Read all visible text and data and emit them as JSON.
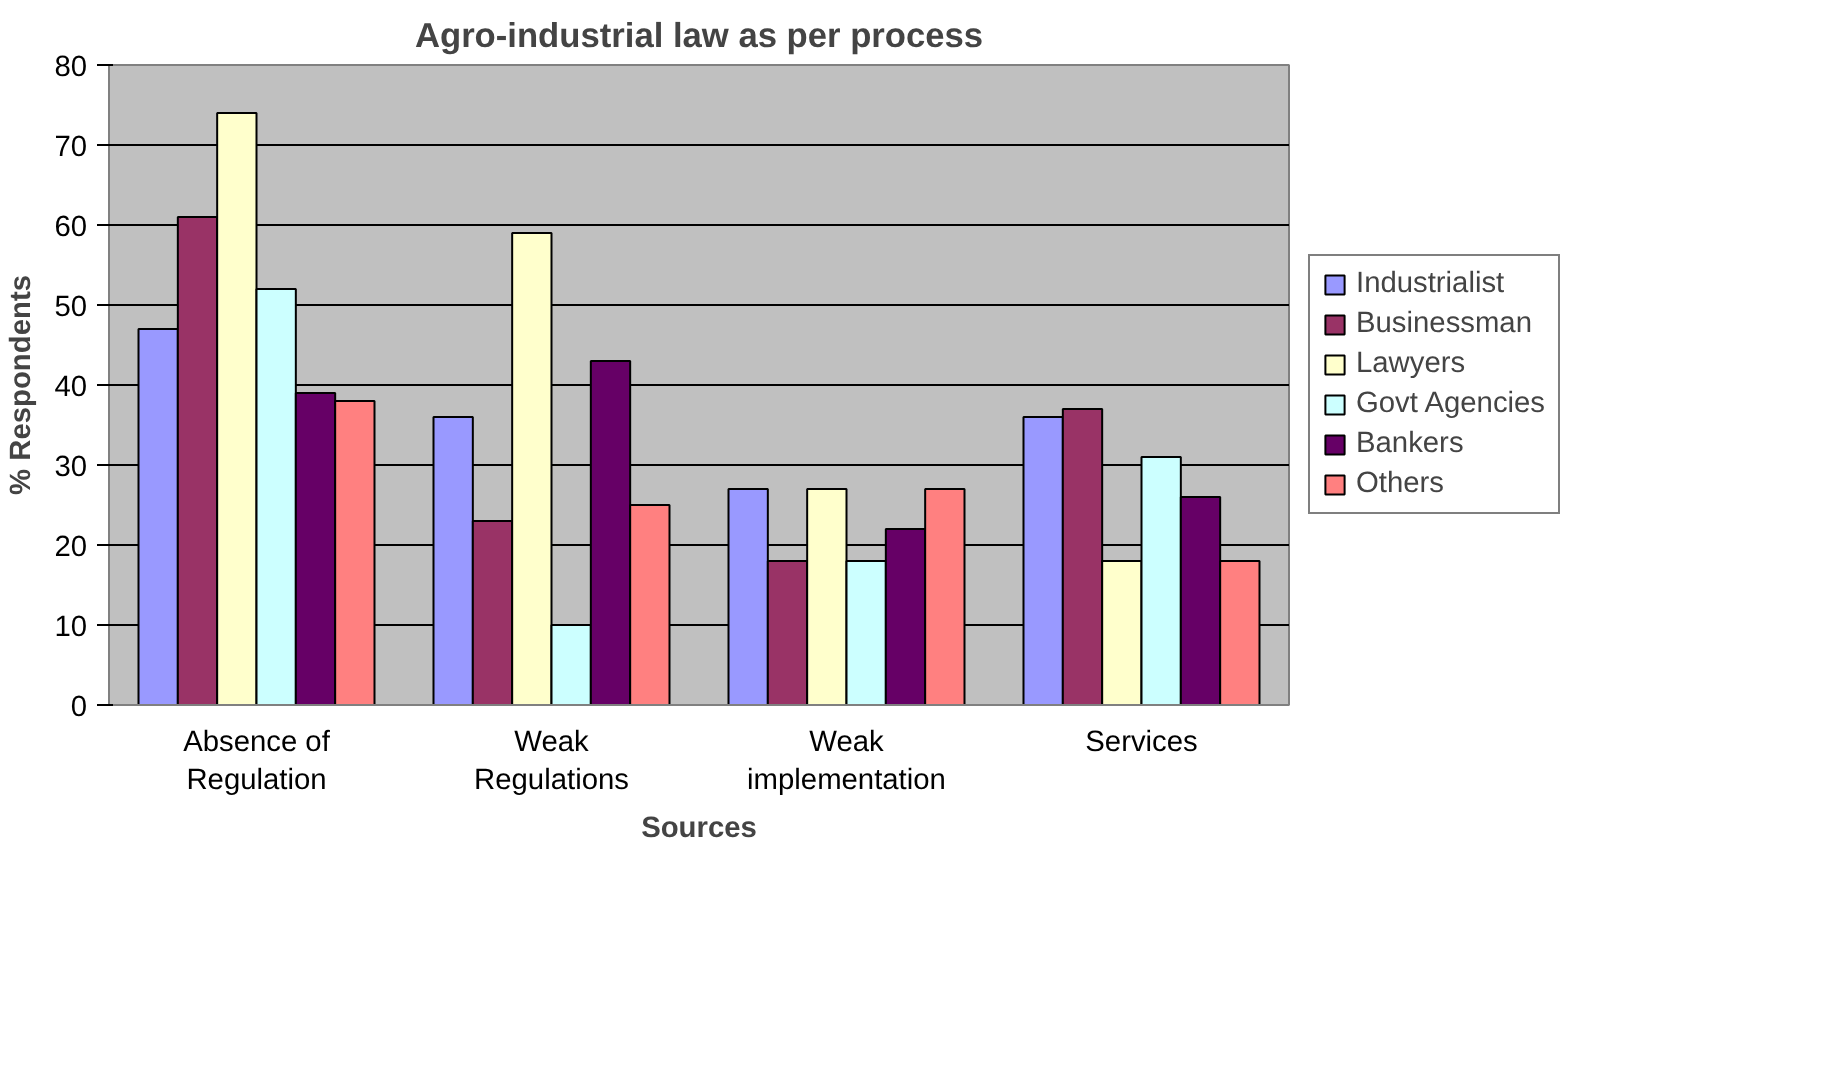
{
  "chart_data": {
    "type": "bar",
    "title": "Agro-industrial law as per process",
    "xlabel": "Sources",
    "ylabel": "% Respondents",
    "categories": [
      "Absence of\nRegulation",
      "Weak\nRegulations",
      "Weak\nimplementation",
      "Services"
    ],
    "series": [
      {
        "name": "Industrialist",
        "color": "#9999ff",
        "values": [
          47,
          36,
          27,
          36
        ]
      },
      {
        "name": "Businessman",
        "color": "#993366",
        "values": [
          61,
          23,
          18,
          37
        ]
      },
      {
        "name": "Lawyers",
        "color": "#ffffcc",
        "values": [
          74,
          59,
          27,
          18
        ]
      },
      {
        "name": "Govt Agencies",
        "color": "#ccffff",
        "values": [
          52,
          10,
          18,
          31
        ]
      },
      {
        "name": "Bankers",
        "color": "#660066",
        "values": [
          39,
          43,
          22,
          26
        ]
      },
      {
        "name": "Others",
        "color": "#ff8080",
        "values": [
          38,
          25,
          27,
          18
        ]
      }
    ],
    "ylim": [
      0,
      80
    ],
    "yticks": [
      0,
      10,
      20,
      30,
      40,
      50,
      60,
      70,
      80
    ],
    "grid": "y",
    "legend": "right"
  }
}
